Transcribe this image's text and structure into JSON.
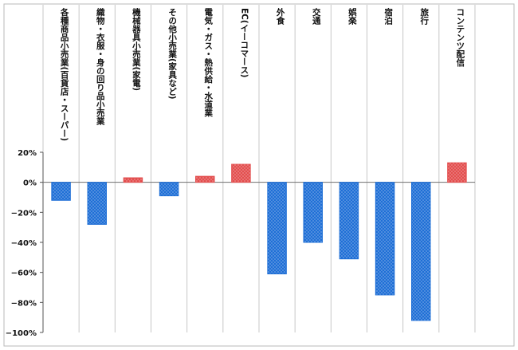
{
  "chart_data": {
    "type": "bar",
    "categories": [
      "各種商品小売業(百貨店・スーパー)",
      "織物・衣服・身の回り品小売業",
      "機械器具小売業(家電)",
      "その他小売業(家具など)",
      "電気・ガス・熱供給・水道業",
      "EC(イーコマース)",
      "外食",
      "交通",
      "娯楽",
      "宿泊",
      "旅行",
      "コンテンツ配信"
    ],
    "series": [
      {
        "values": [
          -12,
          -28,
          3,
          -9,
          4,
          12,
          -61,
          -40,
          -51,
          -75,
          -92,
          13
        ]
      }
    ],
    "ylim": [
      -100,
      20
    ],
    "yticks": [
      20,
      0,
      -20,
      -40,
      -60,
      -80,
      -100
    ],
    "ytick_labels": [
      "20%",
      "0%",
      "−20%",
      "−40%",
      "−60%",
      "−80%",
      "−100%"
    ],
    "colors": {
      "negative": "#1f6fd6",
      "positive": "#e34e4e"
    },
    "grid": "vertical",
    "legend": "none"
  }
}
